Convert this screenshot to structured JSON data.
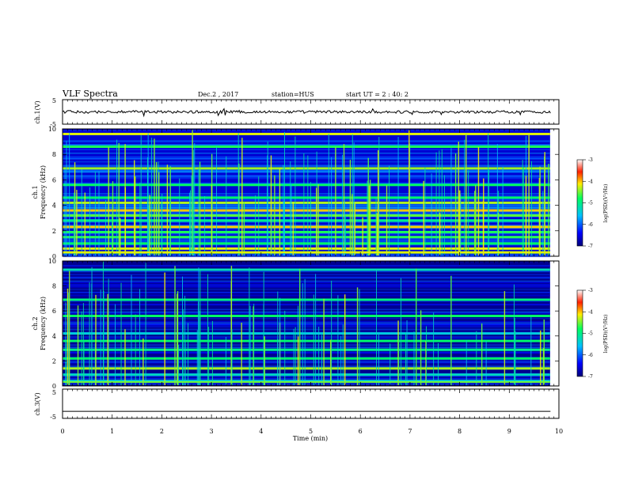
{
  "header": {
    "title": "VLF Spectra",
    "date": "Dec.2 , 2017",
    "station": "station=HUS",
    "start": "start UT =  2 : 40: 2"
  },
  "chart_data": [
    {
      "type": "line",
      "panel": "ch1_waveform",
      "ylabel": "ch.1(V)",
      "yticks": [
        "5",
        "-5"
      ],
      "ylim": [
        -5,
        5
      ],
      "trace_level": 0,
      "color": "#000000"
    },
    {
      "type": "heatmap",
      "panel": "ch1_spectrogram",
      "ylabel": "ch.1\nFrequency (kHz)",
      "ylabel_line1": "ch.1",
      "ylabel_line2": "Frequency (kHz)",
      "yticks": [
        "0",
        "2",
        "4",
        "6",
        "8",
        "10"
      ],
      "ylim": [
        0,
        10
      ],
      "xlim": [
        0,
        9.83
      ],
      "colorbar": {
        "label": "log(PSD)(V²/Hz)",
        "ticks": [
          "-3",
          "-4",
          "-5",
          "-6",
          "-7"
        ],
        "range": [
          -7,
          -3
        ]
      },
      "background_level": -6.6,
      "bands_khz": [
        0.3,
        0.6,
        1.0,
        1.5,
        1.9,
        2.3,
        2.8,
        3.2,
        3.6,
        4.2,
        4.6,
        5.6,
        6.9,
        8.6,
        9.6
      ]
    },
    {
      "type": "heatmap",
      "panel": "ch2_spectrogram",
      "ylabel": "ch.2\nFrequency (kHz)",
      "ylabel_line1": "ch.2",
      "ylabel_line2": "Frequency (kHz)",
      "yticks": [
        "0",
        "2",
        "4",
        "6",
        "8",
        "10"
      ],
      "ylim": [
        0,
        10
      ],
      "xlim": [
        0,
        9.83
      ],
      "colorbar": {
        "label": "log(PSD)(V²/Hz)",
        "ticks": [
          "-3",
          "-4",
          "-5",
          "-6",
          "-7"
        ],
        "range": [
          -7,
          -3
        ]
      },
      "background_level": -6.9,
      "bands_khz": [
        0.4,
        0.9,
        1.4,
        2.2,
        2.9,
        3.6,
        4.2,
        5.6,
        6.9,
        9.3
      ]
    },
    {
      "type": "line",
      "panel": "ch3_waveform",
      "ylabel": "ch.3(V)",
      "yticks": [
        "5",
        "-5"
      ],
      "ylim": [
        -5,
        5
      ],
      "trace_level": -2.6,
      "color": "#000000"
    }
  ],
  "xaxis": {
    "label": "Time (min)",
    "ticks": [
      "0",
      "1",
      "2",
      "3",
      "4",
      "5",
      "6",
      "7",
      "8",
      "9",
      "10"
    ],
    "xlim": [
      0,
      10
    ]
  }
}
